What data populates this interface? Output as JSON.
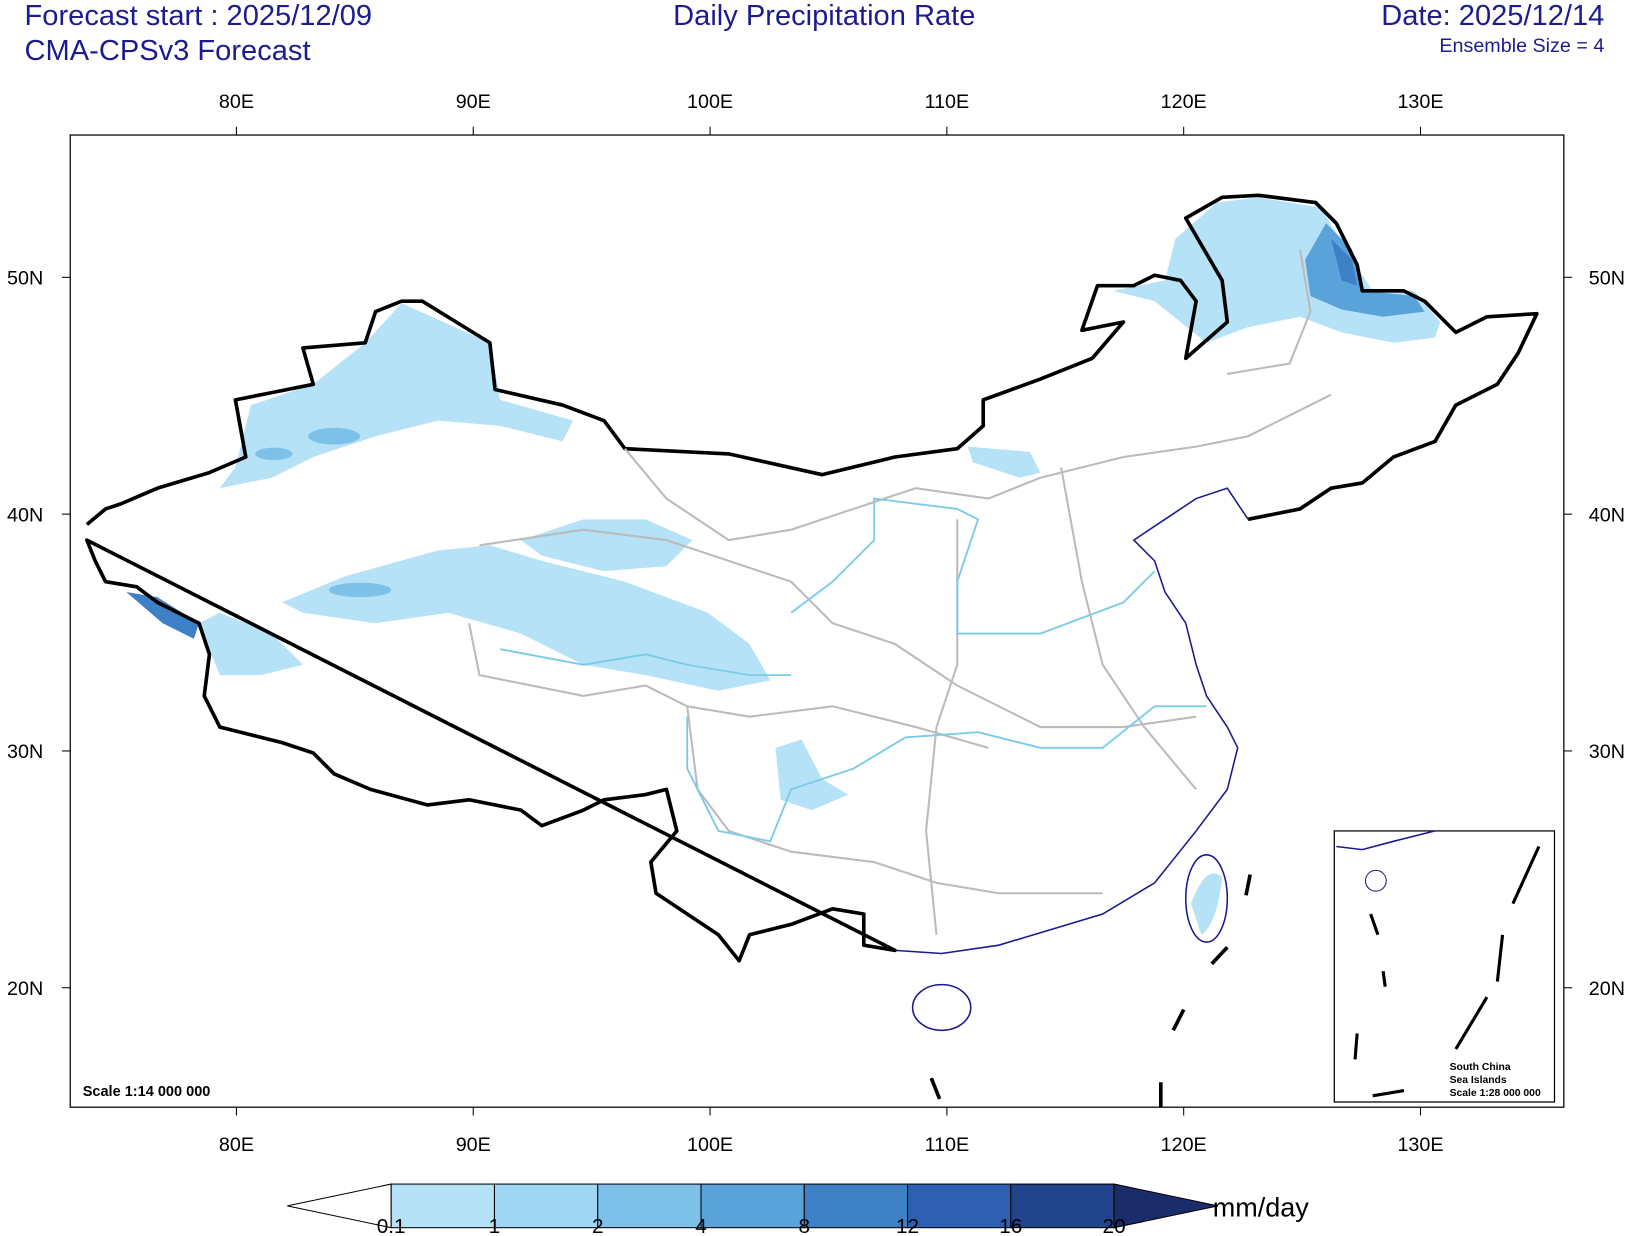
{
  "header": {
    "forecast_start": "Forecast start : 2025/12/09",
    "model": "CMA-CPSv3 Forecast",
    "title": "Daily Precipitation Rate",
    "date": "Date: 2025/12/14",
    "ensemble": "Ensemble Size = 4"
  },
  "map": {
    "lon_labels": [
      "80E",
      "90E",
      "100E",
      "110E",
      "120E",
      "130E"
    ],
    "lat_labels": [
      "50N",
      "40N",
      "30N",
      "20N"
    ],
    "scale": "Scale 1:14 000 000",
    "inset": {
      "lines": [
        "South China",
        "Sea Islands",
        "Scale 1:28 000 000"
      ]
    }
  },
  "colorbar": {
    "levels": [
      0.1,
      1,
      2,
      4,
      8,
      12,
      16,
      20
    ],
    "colors": [
      "#ffffff",
      "#b5e2f6",
      "#9fd6f2",
      "#7dc0e8",
      "#5aa2da",
      "#3d80c6",
      "#2d60b0",
      "#22448c",
      "#1a2d6a"
    ],
    "unit": "mm/day"
  }
}
